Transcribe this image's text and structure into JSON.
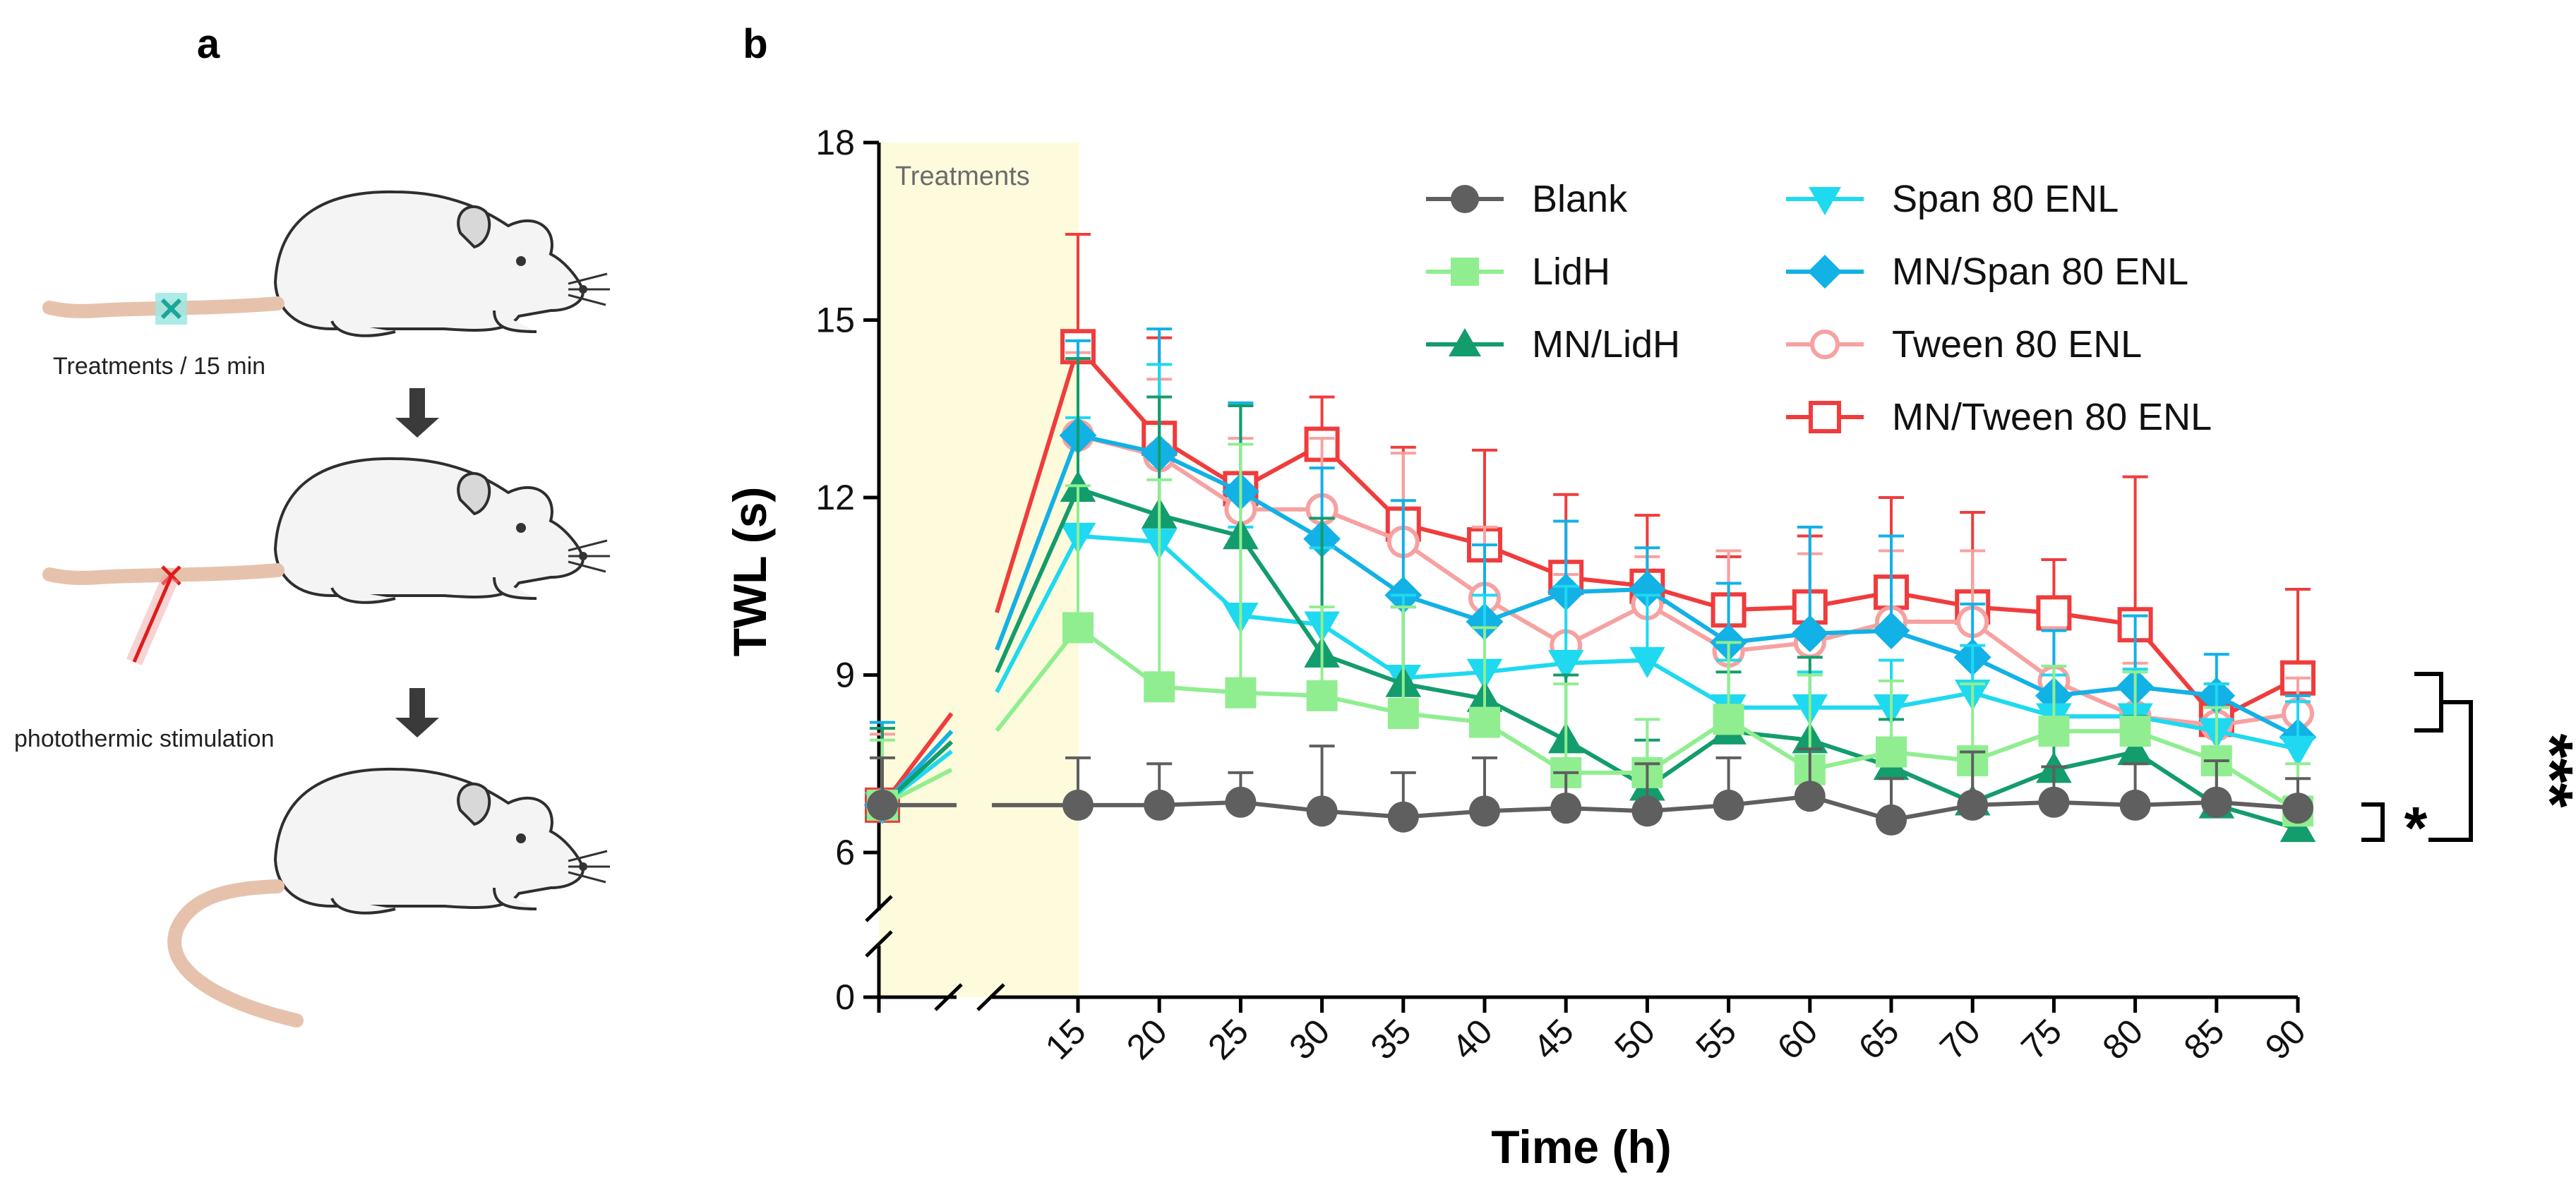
{
  "panels": {
    "a": {
      "label": "a",
      "step1_caption": "Treatments / 15 min",
      "step2_caption": "photothermic stimulation"
    },
    "b": {
      "label": "b"
    }
  },
  "colors": {
    "Blank": "#5f5f5f",
    "LidH": "#90ee90",
    "MN/LidH": "#139c6c",
    "Span 80 ENL": "#1ed9f0",
    "MN/Span 80 ENL": "#12b1e6",
    "Tween 80 ENL": "#f7a1a1",
    "MN/Tween 80 ENL": "#f03c3c",
    "treatment_band": "#fdfbdc",
    "axis": "#000000"
  },
  "chart_data": {
    "type": "line",
    "title": "",
    "xlabel": "Time (h)",
    "ylabel": "TWL (s)",
    "band_label": "Treatments",
    "ylim": [
      0,
      18
    ],
    "yticks": [
      0,
      6,
      9,
      12,
      15,
      18
    ],
    "xticks": [
      15,
      20,
      25,
      30,
      35,
      40,
      45,
      50,
      55,
      60,
      65,
      70,
      75,
      80,
      85,
      90
    ],
    "x": [
      0,
      15,
      20,
      25,
      30,
      35,
      40,
      45,
      50,
      55,
      60,
      65,
      70,
      75,
      80,
      85,
      90
    ],
    "series": [
      {
        "name": "Blank",
        "marker": "circle",
        "values": [
          6.8,
          6.8,
          6.8,
          6.85,
          6.7,
          6.6,
          6.7,
          6.75,
          6.7,
          6.8,
          6.95,
          6.55,
          6.8,
          6.85,
          6.8,
          6.85,
          6.75
        ],
        "err": [
          0.8,
          0.8,
          0.7,
          0.5,
          1.1,
          0.75,
          0.9,
          0.6,
          0.8,
          0.8,
          0.8,
          0.7,
          0.9,
          0.6,
          0.7,
          0.7,
          0.5
        ]
      },
      {
        "name": "LidH",
        "marker": "square",
        "values": [
          6.8,
          9.8,
          8.8,
          8.7,
          8.65,
          8.35,
          8.2,
          7.35,
          7.35,
          8.25,
          7.4,
          7.7,
          7.55,
          8.05,
          8.05,
          7.55,
          6.7
        ],
        "err": [
          1.1,
          2.4,
          3.5,
          4.2,
          1.5,
          1.8,
          1.6,
          1.5,
          0.9,
          1.3,
          1.6,
          1.2,
          1.3,
          1.1,
          1.0,
          0.9,
          0.8
        ]
      },
      {
        "name": "MN/LidH",
        "marker": "triangle-up",
        "values": [
          6.8,
          12.15,
          11.7,
          11.35,
          9.35,
          8.85,
          8.6,
          7.9,
          7.1,
          8.05,
          7.9,
          7.45,
          6.85,
          7.4,
          7.7,
          6.8,
          6.4
        ],
        "err": [
          1.3,
          2.2,
          2.0,
          2.2,
          2.3,
          1.3,
          1.2,
          1.1,
          0.8,
          1.0,
          1.4,
          0.8,
          0.7,
          0.6,
          0.6,
          0.6,
          0.5
        ]
      },
      {
        "name": "Span 80 ENL",
        "marker": "triangle-down",
        "values": [
          6.8,
          11.35,
          11.25,
          10.0,
          9.85,
          8.95,
          9.05,
          9.2,
          9.25,
          8.45,
          8.45,
          8.45,
          8.7,
          8.3,
          8.3,
          8.05,
          7.75
        ],
        "err": [
          1.3,
          2.0,
          3.0,
          1.5,
          1.3,
          1.4,
          1.3,
          1.3,
          1.1,
          0.8,
          0.6,
          0.8,
          0.8,
          0.7,
          0.8,
          0.8,
          0.8
        ]
      },
      {
        "name": "MN/Span 80 ENL",
        "marker": "diamond",
        "values": [
          6.8,
          13.05,
          12.75,
          12.1,
          11.3,
          10.35,
          9.9,
          10.4,
          10.45,
          9.55,
          9.7,
          9.75,
          9.3,
          8.65,
          8.8,
          8.65,
          7.95
        ],
        "err": [
          1.4,
          1.6,
          2.1,
          1.5,
          1.2,
          1.6,
          1.3,
          1.2,
          0.7,
          1.0,
          1.8,
          1.6,
          0.9,
          1.1,
          1.2,
          0.7,
          0.7
        ]
      },
      {
        "name": "Tween 80 ENL",
        "marker": "circle-open",
        "values": [
          6.8,
          13.05,
          12.7,
          11.8,
          11.8,
          11.25,
          10.3,
          9.5,
          10.2,
          9.4,
          9.55,
          9.9,
          9.9,
          8.9,
          8.3,
          8.15,
          8.35
        ],
        "err": [
          1.2,
          1.4,
          1.3,
          1.2,
          1.2,
          1.5,
          1.2,
          1.2,
          0.8,
          1.7,
          1.5,
          1.2,
          1.2,
          0.9,
          0.9,
          0.6,
          0.6
        ]
      },
      {
        "name": "MN/Tween 80 ENL",
        "marker": "square-open",
        "values": [
          6.8,
          14.55,
          13.0,
          12.15,
          12.9,
          11.55,
          11.2,
          10.65,
          10.5,
          10.1,
          10.15,
          10.4,
          10.15,
          10.05,
          9.85,
          8.25,
          8.95
        ],
        "err": [
          1.3,
          1.9,
          1.7,
          1.4,
          0.8,
          1.3,
          1.6,
          1.4,
          1.2,
          0.9,
          1.2,
          1.6,
          1.6,
          0.9,
          2.5,
          0.6,
          1.5
        ]
      }
    ],
    "significance": [
      {
        "label": "*",
        "between": [
          "Blank",
          "MN/LidH"
        ]
      },
      {
        "label": "***",
        "between": [
          "Blank",
          "MN/Tween 80 ENL"
        ]
      }
    ]
  }
}
